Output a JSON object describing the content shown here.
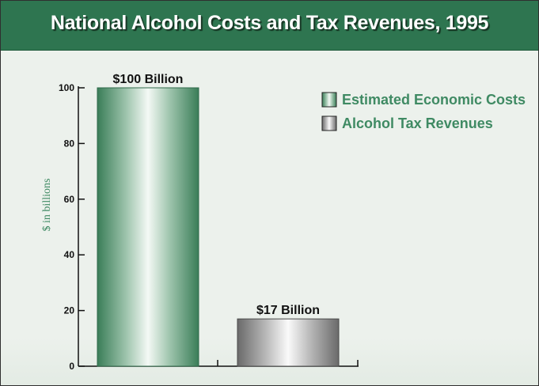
{
  "colors": {
    "header_bg": "#2e7550",
    "accent_green": "#3f8a63",
    "panel_bg": "#ecf1ec"
  },
  "chart_data": {
    "type": "bar",
    "title": "National Alcohol Costs and Tax Revenues, 1995",
    "xlabel": "",
    "ylabel": "$ in billions",
    "ylim": [
      0,
      100
    ],
    "yticks": [
      "0",
      "20",
      "40",
      "60",
      "80",
      "100"
    ],
    "grid": false,
    "legend": "top-right",
    "categories": [
      "Estimated Economic Costs",
      "Alcohol Tax Revenues"
    ],
    "values": [
      100,
      17
    ],
    "data_labels": [
      "$100 Billion",
      "$17 Billion"
    ],
    "series_colors": [
      "#3f8a63",
      "#6e6e6e"
    ]
  }
}
